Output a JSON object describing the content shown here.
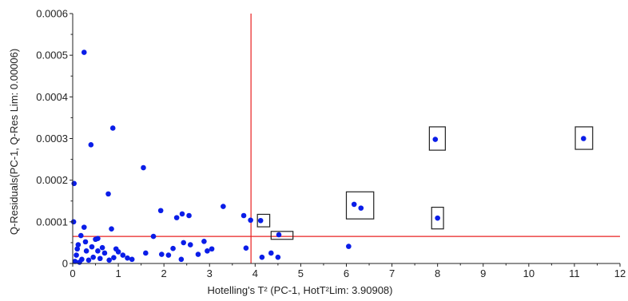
{
  "chart_data": {
    "type": "scatter",
    "title": "",
    "xlabel": "Hotelling's T² (PC-1, HotT²Lim: 3.90908)",
    "ylabel": "Q-Residuals(PC-1, Q-Res Lim: 0.00006)",
    "xlim": [
      0,
      12
    ],
    "ylim": [
      0,
      0.0006
    ],
    "x_ticks": [
      0,
      1,
      2,
      3,
      4,
      5,
      6,
      7,
      8,
      9,
      10,
      11,
      12
    ],
    "x_tick_labels": [
      "0",
      "1",
      "2",
      "3",
      "4",
      "5",
      "6",
      "7",
      "8",
      "9",
      "10",
      "11",
      "12"
    ],
    "y_ticks": [
      0,
      0.0001,
      0.0002,
      0.0003,
      0.0004,
      0.0005,
      0.0006
    ],
    "y_tick_labels": [
      "0",
      "0.0001",
      "0.0002",
      "0.0003",
      "0.0004",
      "0.0005",
      "0.0006"
    ],
    "grid": false,
    "point_color": "#0a1de8",
    "limit_line_color": "#e82020",
    "box_color": "#222222",
    "limit_lines": {
      "x": 3.90908,
      "y": 6.5e-05
    },
    "points": [
      [
        0.25,
        0.000507
      ],
      [
        0.88,
        0.000325
      ],
      [
        0.4,
        0.000285
      ],
      [
        1.55,
        0.00023
      ],
      [
        0.03,
        0.000192
      ],
      [
        0.78,
        0.000167
      ],
      [
        1.93,
        0.000127
      ],
      [
        2.4,
        0.000119
      ],
      [
        2.55,
        0.000115
      ],
      [
        3.3,
        0.000137
      ],
      [
        3.75,
        0.000115
      ],
      [
        3.9,
        0.000104
      ],
      [
        2.28,
        0.00011
      ],
      [
        0.02,
        0.0001
      ],
      [
        0.85,
        8.3e-05
      ],
      [
        0.25,
        8.7e-05
      ],
      [
        1.77,
        6.5e-05
      ],
      [
        0.55,
        6e-05
      ],
      [
        0.18,
        6.7e-05
      ],
      [
        0.5,
        5.8e-05
      ],
      [
        2.43,
        5e-05
      ],
      [
        2.58,
        4.5e-05
      ],
      [
        2.88,
        5.3e-05
      ],
      [
        3.05,
        3.5e-05
      ],
      [
        3.8,
        3.7e-05
      ],
      [
        4.35,
        2.5e-05
      ],
      [
        4.5,
        1.5e-05
      ],
      [
        4.15,
        1.5e-05
      ],
      [
        1.6,
        2.5e-05
      ],
      [
        1.95,
        2.2e-05
      ],
      [
        2.1,
        2e-05
      ],
      [
        1.0,
        2.8e-05
      ],
      [
        0.1,
        3.5e-05
      ],
      [
        0.3,
        3e-05
      ],
      [
        0.7,
        2.5e-05
      ],
      [
        1.1,
        2e-05
      ],
      [
        1.3,
        1e-05
      ],
      [
        2.75,
        2.2e-05
      ],
      [
        2.38,
        1e-05
      ],
      [
        0.45,
        1.5e-05
      ],
      [
        0.6,
        1.2e-05
      ],
      [
        0.8,
        8e-06
      ],
      [
        0.2,
        1e-05
      ],
      [
        0.05,
        5e-06
      ],
      [
        0.15,
        3e-06
      ],
      [
        0.35,
        8e-06
      ],
      [
        0.9,
        1.4e-05
      ],
      [
        1.2,
        1.3e-05
      ],
      [
        0.12,
        4.5e-05
      ],
      [
        0.42,
        4e-05
      ],
      [
        0.65,
        3.8e-05
      ],
      [
        0.28,
        5.2e-05
      ],
      [
        0.08,
        2e-05
      ],
      [
        0.55,
        3e-05
      ],
      [
        0.95,
        3.5e-05
      ],
      [
        2.95,
        3e-05
      ],
      [
        2.2,
        3.6e-05
      ],
      [
        4.12,
        0.000103
      ],
      [
        4.52,
        6.9e-05
      ],
      [
        6.17,
        0.000142
      ],
      [
        6.32,
        0.000133
      ],
      [
        7.95,
        0.000298
      ],
      [
        8.0,
        0.000109
      ],
      [
        11.2,
        0.0003
      ],
      [
        6.05,
        4.1e-05
      ]
    ],
    "highlight_boxes": [
      {
        "x": [
          4.05,
          4.32
        ],
        "y": [
          8.8e-05,
          0.000118
        ]
      },
      {
        "x": [
          4.35,
          4.83
        ],
        "y": [
          5.8e-05,
          7.7e-05
        ]
      },
      {
        "x": [
          6.0,
          6.6
        ],
        "y": [
          0.000107,
          0.000172
        ]
      },
      {
        "x": [
          7.82,
          8.17
        ],
        "y": [
          0.000272,
          0.000328
        ]
      },
      {
        "x": [
          7.87,
          8.13
        ],
        "y": [
          8.3e-05,
          0.000135
        ]
      },
      {
        "x": [
          11.02,
          11.4
        ],
        "y": [
          0.000274,
          0.000328
        ]
      }
    ]
  }
}
